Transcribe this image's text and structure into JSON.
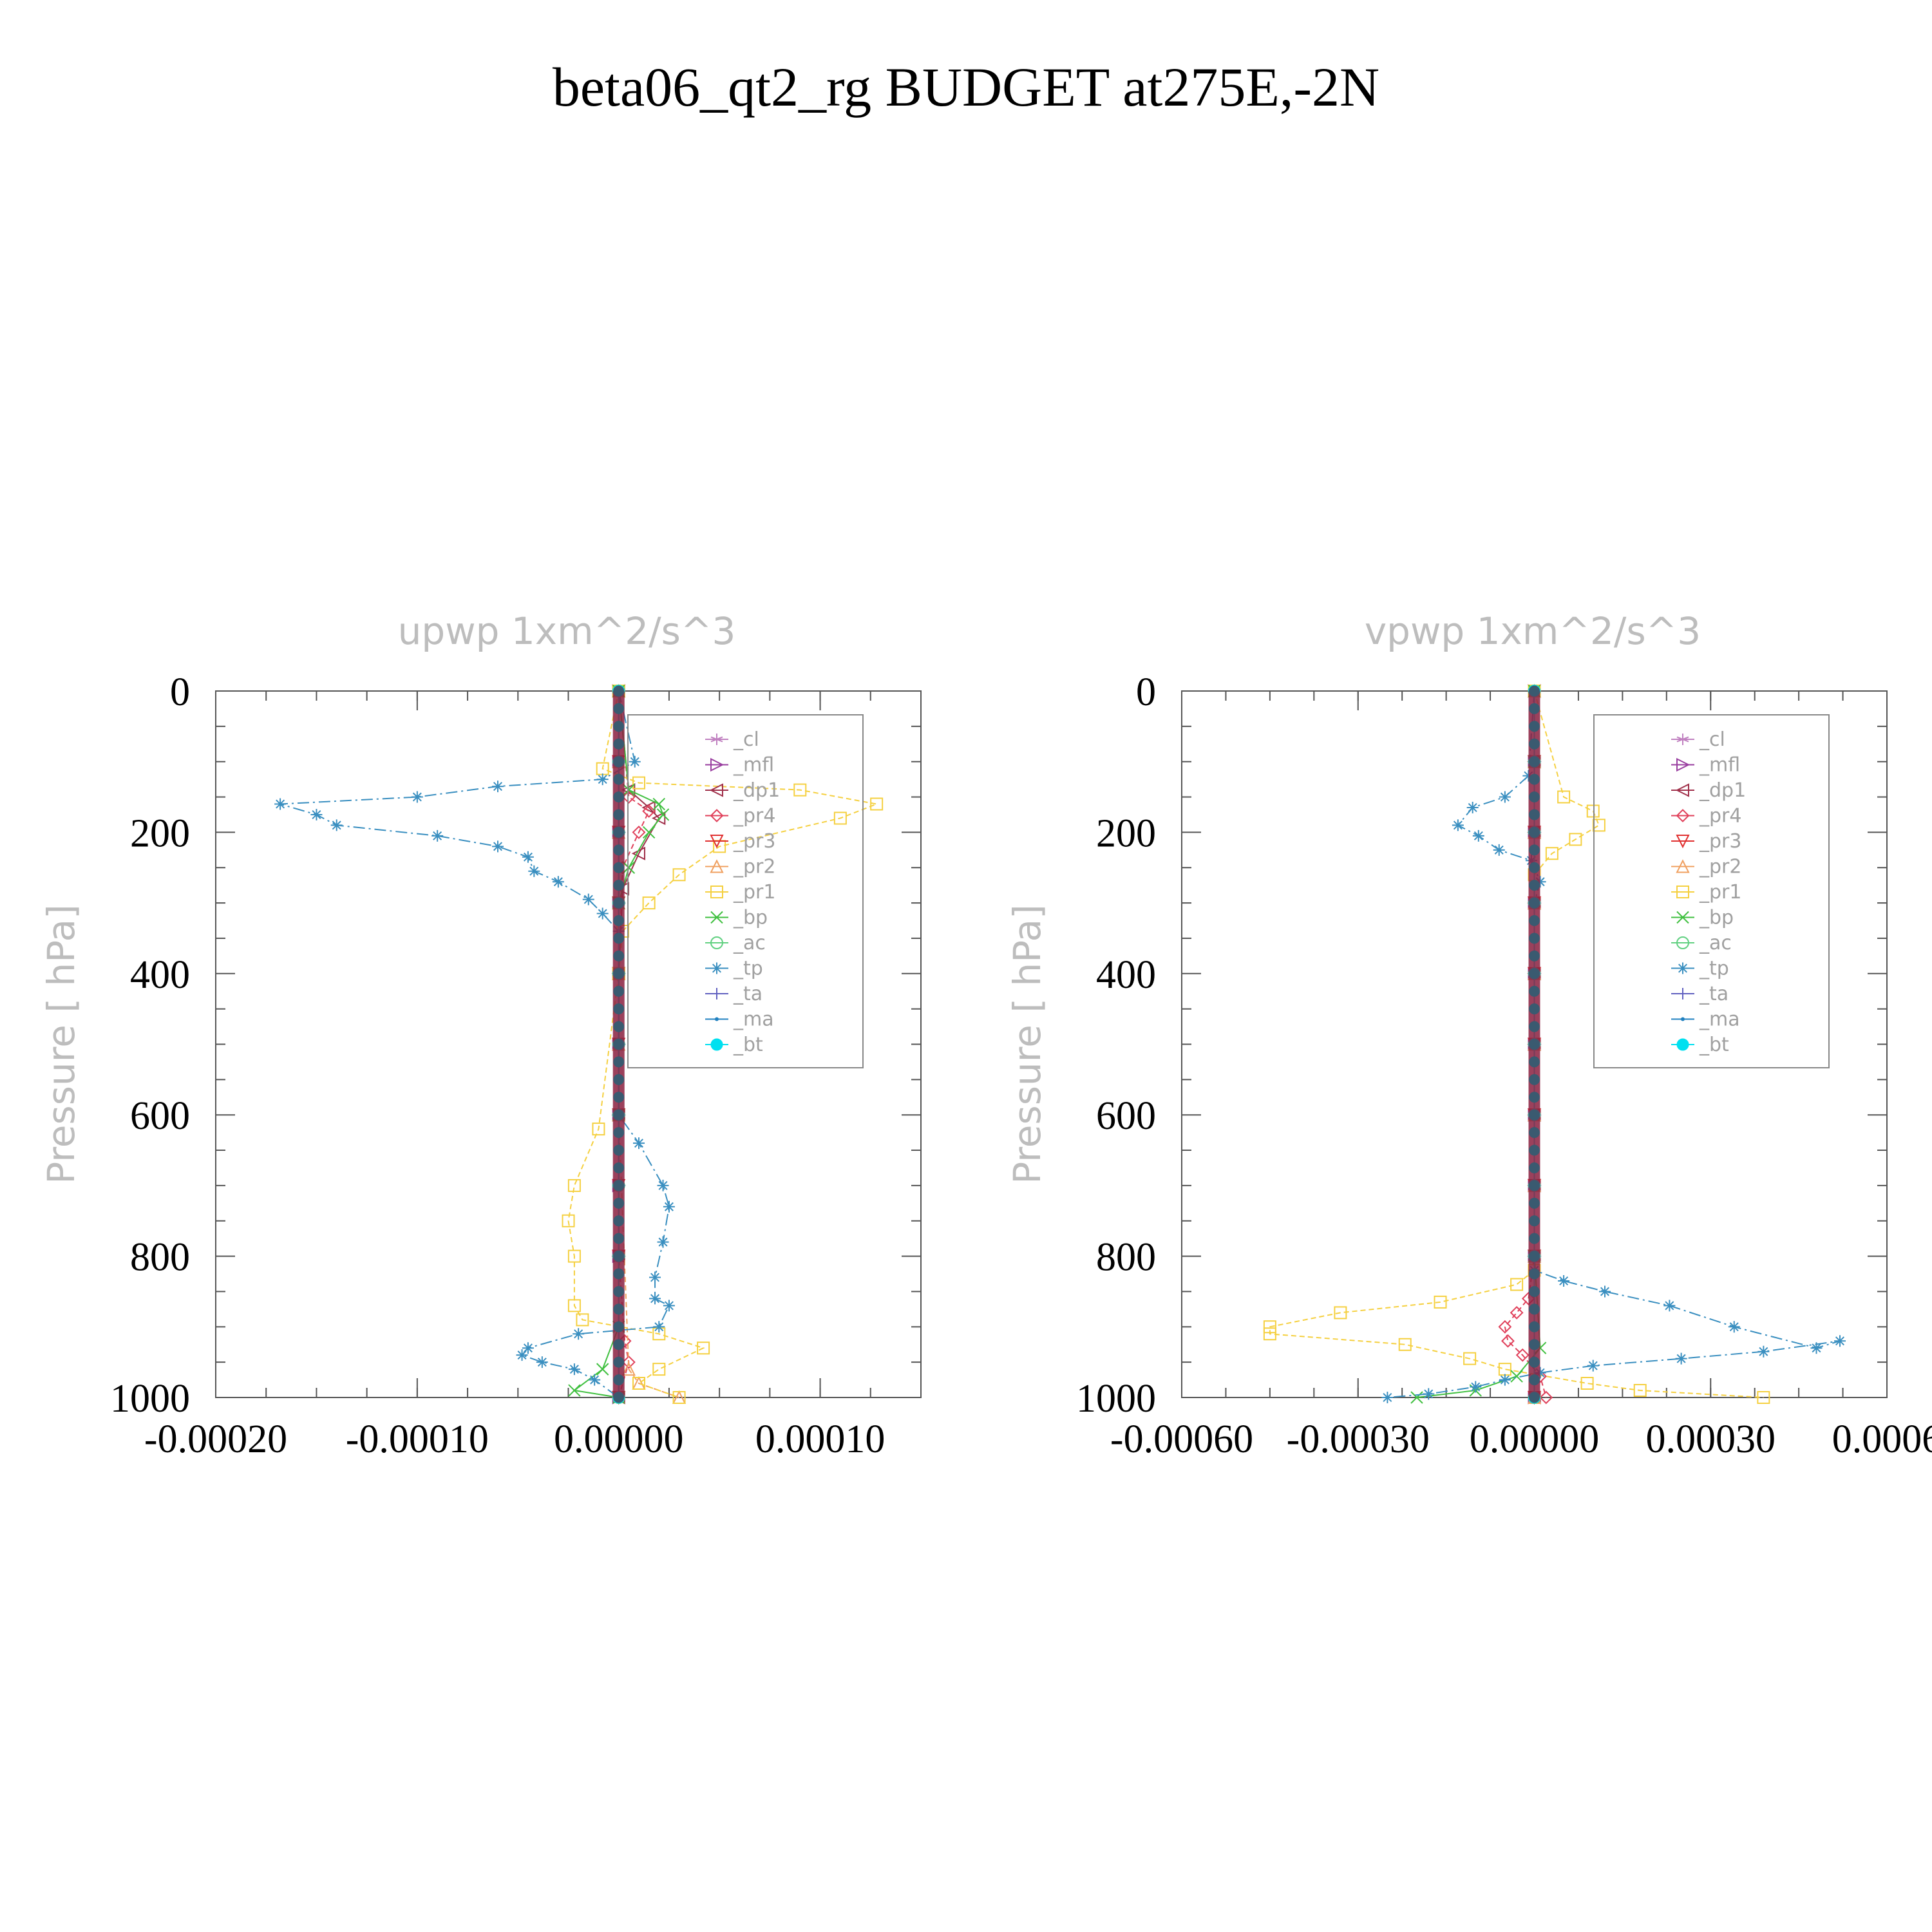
{
  "suptitle": "beta06_qt2_rg  BUDGET at275E,-2N",
  "chart_data": [
    {
      "type": "line",
      "title": "upwp    1xm^2/s^3",
      "ylabel": "Pressure  [ hPa]",
      "xlabel": "",
      "xlim": [
        -0.0002,
        0.00015
      ],
      "ylim": [
        1000,
        0
      ],
      "xticks": [
        "-0.00020",
        "-0.00010",
        "0.00000",
        "0.00010"
      ],
      "xtick_values": [
        -0.0002,
        -0.0001,
        0.0,
        0.0001
      ],
      "yticks": [
        "0",
        "200",
        "400",
        "600",
        "800",
        "1000"
      ],
      "ytick_values": [
        0,
        200,
        400,
        600,
        800,
        1000
      ],
      "legend_position": "top-right",
      "series": [
        {
          "name": "_cl",
          "color": "#c080c0",
          "marker": "star",
          "x": [
            0,
            0,
            0,
            0,
            0,
            0,
            0,
            0,
            0,
            0
          ],
          "y": [
            0,
            100,
            200,
            300,
            400,
            500,
            600,
            700,
            800,
            1000
          ]
        },
        {
          "name": "_mfl",
          "color": "#9a3fa0",
          "marker": "tri-right",
          "x": [
            0,
            0,
            0,
            0,
            0,
            0,
            0,
            0,
            0,
            0
          ],
          "y": [
            0,
            100,
            200,
            300,
            400,
            500,
            600,
            700,
            800,
            1000
          ]
        },
        {
          "name": "_dp1",
          "color": "#a0304a",
          "marker": "tri-left",
          "x": [
            0,
            5e-06,
            1.5e-05,
            2e-05,
            1e-05,
            2e-06,
            0,
            0,
            0,
            0
          ],
          "y": [
            0,
            140,
            165,
            180,
            230,
            280,
            400,
            600,
            800,
            1000
          ]
        },
        {
          "name": "_pr4",
          "color": "#e0405a",
          "marker": "diamond",
          "x": [
            0,
            5e-06,
            1.5e-05,
            1e-05,
            2e-06,
            0,
            0,
            3e-06,
            5e-06,
            0
          ],
          "y": [
            0,
            150,
            170,
            200,
            250,
            400,
            800,
            920,
            950,
            1000
          ]
        },
        {
          "name": "_pr3",
          "color": "#e03030",
          "marker": "tri-down",
          "x": [
            0,
            0,
            0,
            0,
            0,
            0,
            0,
            0,
            0,
            0
          ],
          "y": [
            0,
            100,
            200,
            300,
            400,
            500,
            600,
            700,
            800,
            1000
          ]
        },
        {
          "name": "_pr2",
          "color": "#f0a060",
          "marker": "tri-up",
          "x": [
            0,
            0,
            0,
            0,
            0,
            0,
            0,
            5e-06,
            1e-05,
            3e-05
          ],
          "y": [
            0,
            100,
            200,
            300,
            400,
            500,
            600,
            960,
            980,
            1000
          ]
        },
        {
          "name": "_pr1",
          "color": "#f5d040",
          "marker": "square",
          "x": [
            0,
            -8e-06,
            1e-05,
            9e-05,
            0.000128,
            0.00011,
            5e-05,
            3e-05,
            1.5e-05,
            2e-06,
            0,
            -1e-05,
            -2.2e-05,
            -2.5e-05,
            -2.2e-05,
            -2.2e-05,
            -1.8e-05,
            2e-05,
            4.2e-05,
            2e-05,
            1e-05,
            3e-05
          ],
          "y": [
            0,
            110,
            130,
            140,
            160,
            180,
            220,
            260,
            300,
            340,
            400,
            620,
            700,
            750,
            800,
            870,
            890,
            910,
            930,
            960,
            980,
            1000
          ]
        },
        {
          "name": "_bp",
          "color": "#40c040",
          "marker": "x",
          "x": [
            0,
            5e-06,
            2e-05,
            2.2e-05,
            1.5e-05,
            5e-06,
            0,
            0,
            0,
            -8e-06,
            -2.2e-05,
            0
          ],
          "y": [
            0,
            140,
            160,
            175,
            200,
            250,
            300,
            600,
            900,
            960,
            990,
            1000
          ]
        },
        {
          "name": "_ac",
          "color": "#60d080",
          "marker": "circle",
          "x": [
            0,
            0,
            0,
            0,
            0,
            0,
            0,
            0,
            0,
            0
          ],
          "y": [
            0,
            100,
            200,
            300,
            400,
            500,
            600,
            700,
            800,
            1000
          ]
        },
        {
          "name": "_tp",
          "color": "#3a8fc0",
          "marker": "asterisk",
          "x": [
            0,
            8e-06,
            -8e-06,
            -6e-05,
            -0.0001,
            -0.000168,
            -0.00015,
            -0.00014,
            -9e-05,
            -6e-05,
            -4.5e-05,
            -4.2e-05,
            -3e-05,
            -1.5e-05,
            -8e-06,
            0,
            0,
            1e-05,
            2.2e-05,
            2.5e-05,
            2.2e-05,
            1.8e-05,
            1.8e-05,
            2.5e-05,
            2e-05,
            -2e-05,
            -4.5e-05,
            -4.8e-05,
            -3.8e-05,
            -2.2e-05,
            -1.2e-05,
            0
          ],
          "y": [
            0,
            100,
            125,
            135,
            150,
            160,
            175,
            190,
            205,
            220,
            235,
            255,
            270,
            295,
            315,
            340,
            600,
            640,
            700,
            730,
            780,
            830,
            860,
            870,
            900,
            910,
            930,
            940,
            950,
            960,
            975,
            1000
          ]
        },
        {
          "name": "_ta",
          "color": "#6060c0",
          "marker": "plus",
          "x": [
            0,
            0,
            0,
            0,
            0,
            0,
            0,
            0,
            0,
            0
          ],
          "y": [
            0,
            100,
            200,
            300,
            400,
            500,
            600,
            700,
            800,
            1000
          ]
        },
        {
          "name": "_ma",
          "color": "#2080c0",
          "marker": "dot",
          "x": [
            0,
            0,
            0,
            0,
            0,
            0,
            0,
            0,
            0,
            0
          ],
          "y": [
            0,
            100,
            200,
            300,
            400,
            500,
            600,
            700,
            800,
            1000
          ]
        },
        {
          "name": "_bt",
          "color": "#00e0f0",
          "marker": "filled-circle",
          "x": [
            0,
            0,
            0,
            0,
            0,
            0,
            0,
            0,
            0,
            0
          ],
          "y": [
            0,
            100,
            200,
            300,
            400,
            500,
            600,
            700,
            800,
            1000
          ]
        }
      ]
    },
    {
      "type": "line",
      "title": "vpwp    1xm^2/s^3",
      "ylabel": "Pressure  [ hPa]",
      "xlabel": "",
      "xlim": [
        -0.0006,
        0.0006
      ],
      "ylim": [
        1000,
        0
      ],
      "xticks": [
        "-0.00060",
        "-0.00030",
        "0.00000",
        "0.00030",
        "0.0006"
      ],
      "xtick_values": [
        -0.0006,
        -0.0003,
        0.0,
        0.0003,
        0.0006
      ],
      "yticks": [
        "0",
        "200",
        "400",
        "600",
        "800",
        "1000"
      ],
      "ytick_values": [
        0,
        200,
        400,
        600,
        800,
        1000
      ],
      "legend_position": "top-right",
      "series": [
        {
          "name": "_cl",
          "color": "#c080c0",
          "marker": "star",
          "x": [
            0,
            0,
            0,
            0,
            0,
            0,
            0,
            0,
            0,
            0
          ],
          "y": [
            0,
            100,
            200,
            300,
            400,
            500,
            600,
            700,
            800,
            1000
          ]
        },
        {
          "name": "_mfl",
          "color": "#9a3fa0",
          "marker": "tri-right",
          "x": [
            0,
            0,
            0,
            0,
            0,
            0,
            0,
            0,
            0,
            0
          ],
          "y": [
            0,
            100,
            200,
            300,
            400,
            500,
            600,
            700,
            800,
            1000
          ]
        },
        {
          "name": "_dp1",
          "color": "#a0304a",
          "marker": "tri-left",
          "x": [
            0,
            0,
            0,
            0,
            0,
            0,
            0,
            0,
            0,
            0
          ],
          "y": [
            0,
            100,
            200,
            300,
            400,
            500,
            600,
            700,
            800,
            1000
          ]
        },
        {
          "name": "_pr4",
          "color": "#e0405a",
          "marker": "diamond",
          "x": [
            0,
            0,
            -1e-05,
            -3e-05,
            -5e-05,
            -4.5e-05,
            -2e-05,
            1e-05,
            2e-05
          ],
          "y": [
            0,
            800,
            860,
            880,
            900,
            920,
            940,
            970,
            1000
          ]
        },
        {
          "name": "_pr3",
          "color": "#e03030",
          "marker": "tri-down",
          "x": [
            0,
            0,
            0,
            0,
            0,
            0,
            0,
            0,
            0,
            0
          ],
          "y": [
            0,
            100,
            200,
            300,
            400,
            500,
            600,
            700,
            800,
            1000
          ]
        },
        {
          "name": "_pr2",
          "color": "#f0a060",
          "marker": "tri-up",
          "x": [
            0,
            0,
            0,
            0,
            0,
            0,
            0,
            0,
            0,
            0
          ],
          "y": [
            0,
            100,
            200,
            300,
            400,
            500,
            600,
            700,
            800,
            1000
          ]
        },
        {
          "name": "_pr1",
          "color": "#f5d040",
          "marker": "square",
          "x": [
            0,
            5e-05,
            0.0001,
            0.00011,
            7e-05,
            3e-05,
            0,
            0,
            -3e-05,
            -0.00016,
            -0.00033,
            -0.00045,
            -0.00045,
            -0.00022,
            -0.00011,
            -5e-05,
            9e-05,
            0.00018,
            0.00039
          ],
          "y": [
            0,
            150,
            170,
            190,
            210,
            230,
            260,
            820,
            840,
            865,
            880,
            900,
            910,
            925,
            945,
            960,
            980,
            990,
            1000
          ]
        },
        {
          "name": "_bp",
          "color": "#40c040",
          "marker": "x",
          "x": [
            0,
            0,
            0,
            1e-05,
            -3e-05,
            -0.0001,
            -0.0002
          ],
          "y": [
            0,
            100,
            800,
            930,
            970,
            990,
            1000
          ]
        },
        {
          "name": "_ac",
          "color": "#60d080",
          "marker": "circle",
          "x": [
            0,
            0,
            0,
            0,
            0,
            0,
            0,
            0,
            0,
            0
          ],
          "y": [
            0,
            100,
            200,
            300,
            400,
            500,
            600,
            700,
            800,
            1000
          ]
        },
        {
          "name": "_tp",
          "color": "#3a8fc0",
          "marker": "asterisk",
          "x": [
            0,
            -1e-05,
            -5e-05,
            -0.000105,
            -0.00013,
            -9.5e-05,
            -6e-05,
            -5e-06,
            1e-05,
            0,
            0,
            5e-05,
            0.00012,
            0.00023,
            0.00034,
            0.00048,
            0.00052,
            0.00039,
            0.00025,
            0.0001,
            1e-05,
            -5e-05,
            -0.0001,
            -0.00018,
            -0.00025
          ],
          "y": [
            0,
            120,
            150,
            165,
            190,
            205,
            225,
            240,
            270,
            300,
            820,
            835,
            850,
            870,
            900,
            930,
            920,
            935,
            945,
            955,
            965,
            975,
            985,
            995,
            1000
          ]
        },
        {
          "name": "_ta",
          "color": "#6060c0",
          "marker": "plus",
          "x": [
            0,
            0,
            0,
            0,
            0,
            0,
            0,
            0,
            0,
            0
          ],
          "y": [
            0,
            100,
            200,
            300,
            400,
            500,
            600,
            700,
            800,
            1000
          ]
        },
        {
          "name": "_ma",
          "color": "#2080c0",
          "marker": "dot",
          "x": [
            0,
            0,
            0,
            0,
            0,
            0,
            0,
            0,
            0,
            0
          ],
          "y": [
            0,
            100,
            200,
            300,
            400,
            500,
            600,
            700,
            800,
            1000
          ]
        },
        {
          "name": "_bt",
          "color": "#00e0f0",
          "marker": "filled-circle",
          "x": [
            0,
            0,
            0,
            0,
            0,
            0,
            0,
            0,
            0,
            0
          ],
          "y": [
            0,
            100,
            200,
            300,
            400,
            500,
            600,
            700,
            800,
            1000
          ]
        }
      ]
    }
  ]
}
